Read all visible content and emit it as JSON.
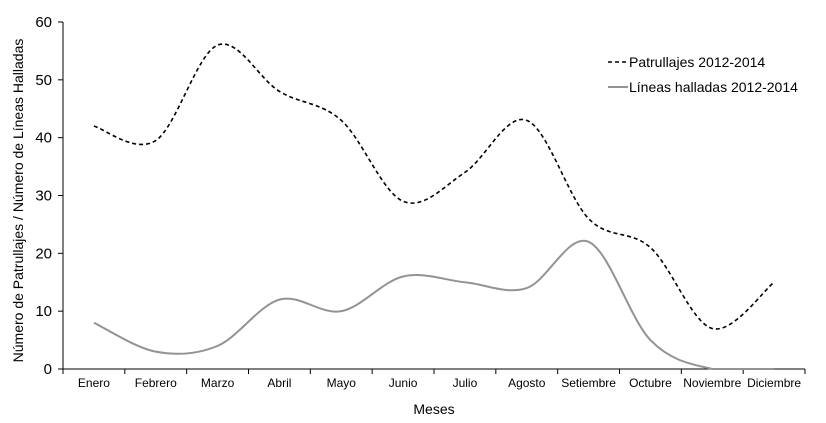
{
  "chart_data": {
    "type": "line",
    "xlabel": "Meses",
    "ylabel": "Número de Patrullajes / Número de Líneas Halladas",
    "categories": [
      "Enero",
      "Febrero",
      "Marzo",
      "Abril",
      "Mayo",
      "Junio",
      "Julio",
      "Agosto",
      "Setiembre",
      "Octubre",
      "Noviembre",
      "Diciembre"
    ],
    "ylim": [
      0,
      60
    ],
    "yticks": [
      0,
      10,
      20,
      30,
      40,
      50,
      60
    ],
    "grid": false,
    "legend_position": "top-right",
    "series": [
      {
        "name": "Patrullajes 2012-2014",
        "style": "dashed",
        "color": "#000000",
        "values": [
          42,
          39.5,
          56,
          48,
          43,
          29,
          34,
          43,
          26,
          21,
          7,
          15
        ]
      },
      {
        "name": "Líneas halladas 2012-2014",
        "style": "solid",
        "color": "#939393",
        "values": [
          8,
          3,
          4,
          12,
          10,
          16,
          15,
          14,
          22,
          5,
          0,
          0
        ]
      }
    ]
  }
}
